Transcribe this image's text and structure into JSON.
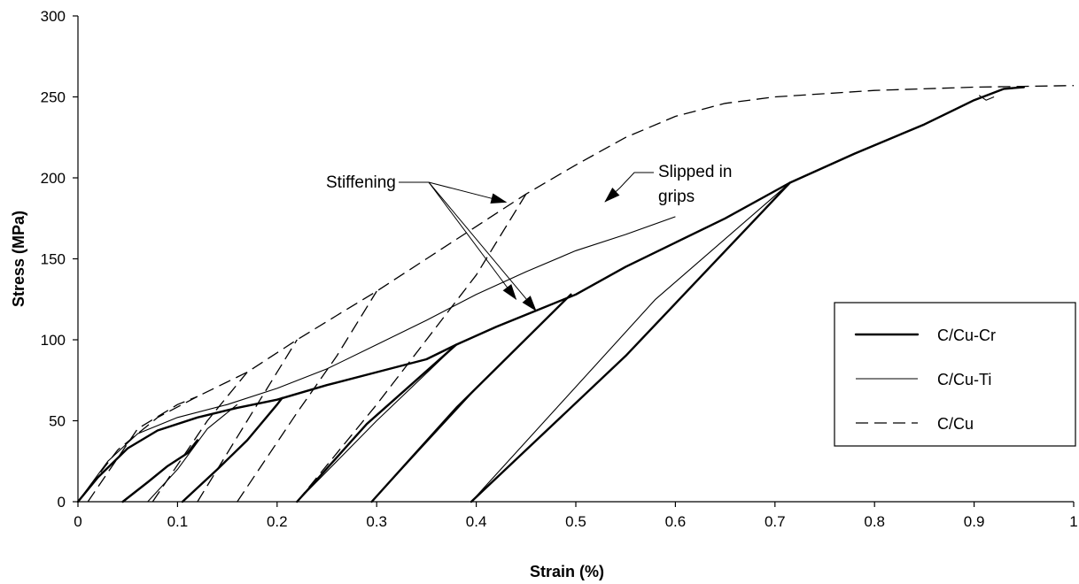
{
  "chart_data": {
    "type": "line",
    "title": "",
    "xlabel": "Strain (%)",
    "ylabel": "Stress (MPa)",
    "xlim": [
      0,
      1
    ],
    "ylim": [
      0,
      300
    ],
    "x_ticks": [
      "0",
      "0.1",
      "0.2",
      "0.3",
      "0.4",
      "0.5",
      "0.6",
      "0.7",
      "0.8",
      "0.9",
      "1"
    ],
    "y_ticks": [
      "0",
      "50",
      "100",
      "150",
      "200",
      "250",
      "300"
    ],
    "grid": false,
    "legend_position": "right",
    "series": [
      {
        "name": "C/Cu-Cr",
        "style": "thick-solid",
        "paths": [
          [
            [
              0,
              0
            ],
            [
              0.02,
              15
            ],
            [
              0.05,
              33
            ],
            [
              0.08,
              44
            ],
            [
              0.12,
              52
            ],
            [
              0.16,
              58
            ],
            [
              0.2,
              63
            ],
            [
              0.25,
              72
            ],
            [
              0.3,
              80
            ],
            [
              0.35,
              88
            ],
            [
              0.38,
              97
            ],
            [
              0.42,
              108
            ],
            [
              0.46,
              118
            ],
            [
              0.5,
              128
            ],
            [
              0.55,
              145
            ],
            [
              0.6,
              160
            ],
            [
              0.65,
              175
            ],
            [
              0.715,
              197
            ],
            [
              0.78,
              215
            ],
            [
              0.85,
              233
            ],
            [
              0.9,
              248
            ],
            [
              0.93,
              255
            ],
            [
              0.95,
              256
            ]
          ],
          [
            [
              0.045,
              0
            ],
            [
              0.07,
              12
            ],
            [
              0.09,
              22
            ],
            [
              0.11,
              30
            ],
            [
              0.12,
              38
            ]
          ],
          [
            [
              0.105,
              0
            ],
            [
              0.14,
              20
            ],
            [
              0.17,
              38
            ],
            [
              0.2,
              60
            ],
            [
              0.205,
              64
            ]
          ],
          [
            [
              0.22,
              0
            ],
            [
              0.29,
              48
            ],
            [
              0.38,
              97
            ]
          ],
          [
            [
              0.295,
              0
            ],
            [
              0.38,
              58
            ],
            [
              0.495,
              128
            ]
          ],
          [
            [
              0.395,
              0
            ],
            [
              0.55,
              90
            ],
            [
              0.715,
              197
            ]
          ]
        ]
      },
      {
        "name": "C/Cu-Ti",
        "style": "thin-solid",
        "paths": [
          [
            [
              0,
              0
            ],
            [
              0.03,
              25
            ],
            [
              0.06,
              42
            ],
            [
              0.1,
              52
            ],
            [
              0.15,
              60
            ],
            [
              0.2,
              70
            ],
            [
              0.25,
              82
            ],
            [
              0.3,
              97
            ],
            [
              0.35,
              112
            ],
            [
              0.4,
              128
            ],
            [
              0.45,
              142
            ],
            [
              0.5,
              155
            ],
            [
              0.55,
              165
            ],
            [
              0.6,
              176
            ]
          ],
          [
            [
              0.22,
              0
            ],
            [
              0.3,
              50
            ],
            [
              0.38,
              97
            ]
          ],
          [
            [
              0.295,
              0
            ],
            [
              0.4,
              70
            ],
            [
              0.495,
              128
            ]
          ],
          [
            [
              0.395,
              0
            ],
            [
              0.58,
              125
            ],
            [
              0.715,
              197
            ]
          ],
          [
            [
              0.07,
              0
            ],
            [
              0.1,
              20
            ],
            [
              0.13,
              45
            ],
            [
              0.16,
              60
            ]
          ],
          [
            [
              0.905,
              251
            ],
            [
              0.912,
              248
            ],
            [
              0.92,
              250
            ]
          ]
        ]
      },
      {
        "name": "C/Cu",
        "style": "dashed",
        "paths": [
          [
            [
              0,
              0
            ],
            [
              0.04,
              32
            ],
            [
              0.08,
              52
            ],
            [
              0.12,
              65
            ],
            [
              0.17,
              80
            ],
            [
              0.22,
              100
            ],
            [
              0.26,
              115
            ],
            [
              0.3,
              130
            ],
            [
              0.35,
              150
            ],
            [
              0.4,
              170
            ],
            [
              0.45,
              190
            ],
            [
              0.5,
              208
            ],
            [
              0.55,
              225
            ],
            [
              0.6,
              238
            ],
            [
              0.65,
              246
            ],
            [
              0.7,
              250
            ],
            [
              0.8,
              254
            ],
            [
              0.9,
              256
            ],
            [
              1.0,
              257
            ]
          ],
          [
            [
              0.01,
              0
            ],
            [
              0.06,
              45
            ],
            [
              0.1,
              60
            ],
            [
              0.12,
              65
            ]
          ],
          [
            [
              0.075,
              0
            ],
            [
              0.13,
              50
            ],
            [
              0.17,
              80
            ]
          ],
          [
            [
              0.12,
              0
            ],
            [
              0.18,
              60
            ],
            [
              0.22,
              100
            ]
          ],
          [
            [
              0.16,
              0
            ],
            [
              0.22,
              55
            ],
            [
              0.26,
              90
            ],
            [
              0.3,
              130
            ]
          ],
          [
            [
              0.22,
              0
            ],
            [
              0.3,
              60
            ],
            [
              0.35,
              100
            ],
            [
              0.4,
              140
            ],
            [
              0.45,
              190
            ]
          ]
        ]
      }
    ],
    "annotations": [
      {
        "lines": [
          "Stiffening"
        ],
        "anchor": [
          0.35,
          215
        ],
        "targets": [
          [
            0.43,
            185
          ],
          [
            0.44,
            125
          ],
          [
            0.46,
            118
          ]
        ]
      },
      {
        "lines": [
          "Slipped in",
          "grips"
        ],
        "anchor": [
          0.68,
          208
        ],
        "targets": [
          [
            0.535,
            165
          ]
        ]
      }
    ]
  }
}
